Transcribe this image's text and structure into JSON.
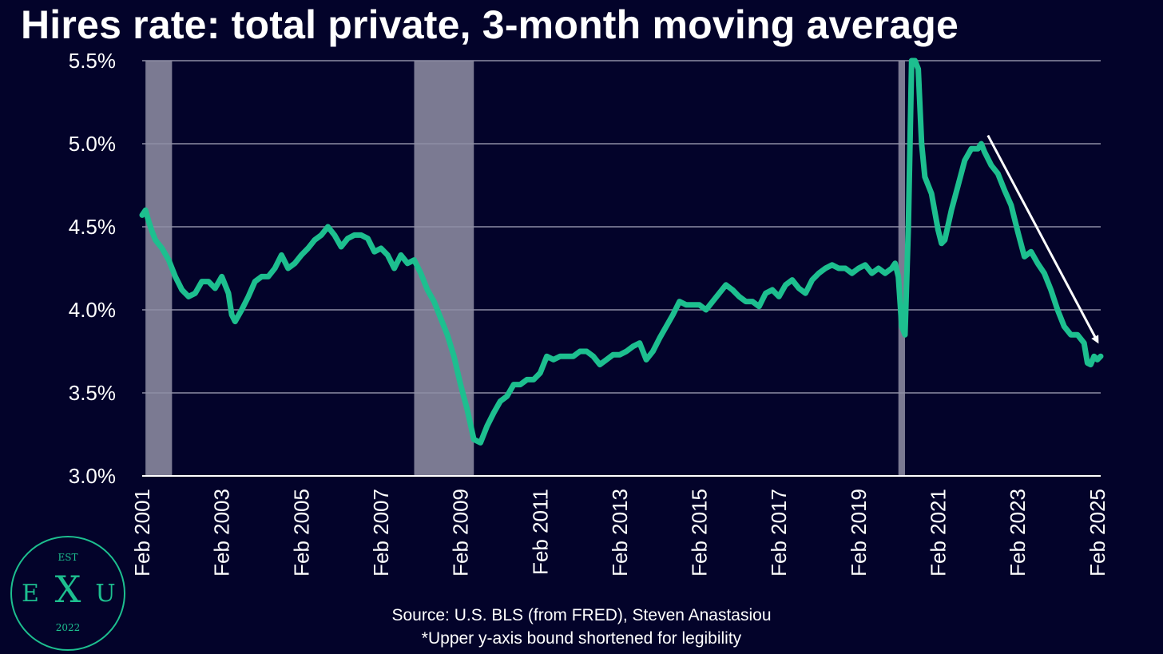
{
  "chart_data": {
    "type": "line",
    "title": "Hires rate: total private, 3-month moving average",
    "source": "Source: U.S. BLS (from FRED), Steven Anastasiou",
    "footnote": "*Upper y-axis bound shortened for legibility",
    "ylim": [
      3.0,
      5.5
    ],
    "y_ticks": [
      {
        "value": 3.0,
        "label": "3.0%"
      },
      {
        "value": 3.5,
        "label": "3.5%"
      },
      {
        "value": 4.0,
        "label": "4.0%"
      },
      {
        "value": 4.5,
        "label": "4.5%"
      },
      {
        "value": 5.0,
        "label": "5.0%"
      },
      {
        "value": 5.5,
        "label": "5.5%"
      }
    ],
    "x_range": [
      "2001-02",
      "2025-03"
    ],
    "x_ticks": [
      {
        "date": "2001-02",
        "label": "Feb 2001"
      },
      {
        "date": "2003-02",
        "label": "Feb 2003"
      },
      {
        "date": "2005-02",
        "label": "Feb 2005"
      },
      {
        "date": "2007-02",
        "label": "Feb 2007"
      },
      {
        "date": "2009-02",
        "label": "Feb 2009"
      },
      {
        "date": "2011-02",
        "label": "Feb 2011"
      },
      {
        "date": "2013-02",
        "label": "Feb 2013"
      },
      {
        "date": "2015-02",
        "label": "Feb 2015"
      },
      {
        "date": "2017-02",
        "label": "Feb 2017"
      },
      {
        "date": "2019-02",
        "label": "Feb 2019"
      },
      {
        "date": "2021-02",
        "label": "Feb 2021"
      },
      {
        "date": "2023-02",
        "label": "Feb 2023"
      },
      {
        "date": "2025-02",
        "label": "Feb 2025"
      }
    ],
    "grid": true,
    "recessions": [
      {
        "start": "2001-03",
        "end": "2001-11"
      },
      {
        "start": "2007-12",
        "end": "2009-06"
      },
      {
        "start": "2020-02",
        "end": "2020-04"
      }
    ],
    "series": [
      {
        "color": "#1dbf8f",
        "points": [
          [
            "2001-02",
            4.57
          ],
          [
            "2001-03",
            4.6
          ],
          [
            "2001-04",
            4.53
          ],
          [
            "2001-05",
            4.47
          ],
          [
            "2001-06",
            4.42
          ],
          [
            "2001-08",
            4.37
          ],
          [
            "2001-10",
            4.3
          ],
          [
            "2001-12",
            4.2
          ],
          [
            "2002-02",
            4.12
          ],
          [
            "2002-04",
            4.08
          ],
          [
            "2002-06",
            4.1
          ],
          [
            "2002-08",
            4.17
          ],
          [
            "2002-10",
            4.17
          ],
          [
            "2002-12",
            4.13
          ],
          [
            "2003-02",
            4.2
          ],
          [
            "2003-04",
            4.1
          ],
          [
            "2003-05",
            3.97
          ],
          [
            "2003-06",
            3.93
          ],
          [
            "2003-08",
            4.0
          ],
          [
            "2003-10",
            4.08
          ],
          [
            "2003-12",
            4.17
          ],
          [
            "2004-02",
            4.2
          ],
          [
            "2004-04",
            4.2
          ],
          [
            "2004-06",
            4.25
          ],
          [
            "2004-08",
            4.33
          ],
          [
            "2004-10",
            4.25
          ],
          [
            "2004-12",
            4.28
          ],
          [
            "2005-02",
            4.33
          ],
          [
            "2005-04",
            4.37
          ],
          [
            "2005-06",
            4.42
          ],
          [
            "2005-08",
            4.45
          ],
          [
            "2005-10",
            4.5
          ],
          [
            "2005-12",
            4.45
          ],
          [
            "2006-02",
            4.38
          ],
          [
            "2006-04",
            4.43
          ],
          [
            "2006-06",
            4.45
          ],
          [
            "2006-08",
            4.45
          ],
          [
            "2006-10",
            4.43
          ],
          [
            "2006-12",
            4.35
          ],
          [
            "2007-02",
            4.37
          ],
          [
            "2007-04",
            4.33
          ],
          [
            "2007-06",
            4.25
          ],
          [
            "2007-08",
            4.33
          ],
          [
            "2007-10",
            4.28
          ],
          [
            "2007-12",
            4.3
          ],
          [
            "2008-02",
            4.22
          ],
          [
            "2008-04",
            4.12
          ],
          [
            "2008-06",
            4.05
          ],
          [
            "2008-08",
            3.95
          ],
          [
            "2008-10",
            3.85
          ],
          [
            "2008-12",
            3.72
          ],
          [
            "2009-02",
            3.55
          ],
          [
            "2009-04",
            3.4
          ],
          [
            "2009-06",
            3.22
          ],
          [
            "2009-08",
            3.2
          ],
          [
            "2009-10",
            3.3
          ],
          [
            "2009-12",
            3.38
          ],
          [
            "2010-02",
            3.45
          ],
          [
            "2010-04",
            3.48
          ],
          [
            "2010-06",
            3.55
          ],
          [
            "2010-08",
            3.55
          ],
          [
            "2010-10",
            3.58
          ],
          [
            "2010-12",
            3.58
          ],
          [
            "2011-02",
            3.62
          ],
          [
            "2011-04",
            3.72
          ],
          [
            "2011-06",
            3.7
          ],
          [
            "2011-08",
            3.72
          ],
          [
            "2011-10",
            3.72
          ],
          [
            "2011-12",
            3.72
          ],
          [
            "2012-02",
            3.75
          ],
          [
            "2012-04",
            3.75
          ],
          [
            "2012-06",
            3.72
          ],
          [
            "2012-08",
            3.67
          ],
          [
            "2012-10",
            3.7
          ],
          [
            "2012-12",
            3.73
          ],
          [
            "2013-02",
            3.73
          ],
          [
            "2013-04",
            3.75
          ],
          [
            "2013-06",
            3.78
          ],
          [
            "2013-08",
            3.8
          ],
          [
            "2013-10",
            3.7
          ],
          [
            "2013-12",
            3.75
          ],
          [
            "2014-02",
            3.83
          ],
          [
            "2014-04",
            3.9
          ],
          [
            "2014-06",
            3.97
          ],
          [
            "2014-08",
            4.05
          ],
          [
            "2014-10",
            4.03
          ],
          [
            "2014-12",
            4.03
          ],
          [
            "2015-02",
            4.03
          ],
          [
            "2015-04",
            4.0
          ],
          [
            "2015-06",
            4.05
          ],
          [
            "2015-08",
            4.1
          ],
          [
            "2015-10",
            4.15
          ],
          [
            "2015-12",
            4.12
          ],
          [
            "2016-02",
            4.08
          ],
          [
            "2016-04",
            4.05
          ],
          [
            "2016-06",
            4.05
          ],
          [
            "2016-08",
            4.02
          ],
          [
            "2016-10",
            4.1
          ],
          [
            "2016-12",
            4.12
          ],
          [
            "2017-02",
            4.08
          ],
          [
            "2017-04",
            4.15
          ],
          [
            "2017-06",
            4.18
          ],
          [
            "2017-08",
            4.13
          ],
          [
            "2017-10",
            4.1
          ],
          [
            "2017-12",
            4.18
          ],
          [
            "2018-02",
            4.22
          ],
          [
            "2018-04",
            4.25
          ],
          [
            "2018-06",
            4.27
          ],
          [
            "2018-08",
            4.25
          ],
          [
            "2018-10",
            4.25
          ],
          [
            "2018-12",
            4.22
          ],
          [
            "2019-02",
            4.25
          ],
          [
            "2019-04",
            4.27
          ],
          [
            "2019-06",
            4.22
          ],
          [
            "2019-08",
            4.25
          ],
          [
            "2019-10",
            4.22
          ],
          [
            "2019-12",
            4.25
          ],
          [
            "2020-01",
            4.28
          ],
          [
            "2020-02",
            4.2
          ],
          [
            "2020-03",
            3.9
          ],
          [
            "2020-04",
            3.85
          ],
          [
            "2020-05",
            4.5
          ],
          [
            "2020-06",
            5.5
          ],
          [
            "2020-07",
            5.5
          ],
          [
            "2020-08",
            5.45
          ],
          [
            "2020-09",
            5.0
          ],
          [
            "2020-10",
            4.8
          ],
          [
            "2020-12",
            4.7
          ],
          [
            "2021-02",
            4.48
          ],
          [
            "2021-03",
            4.4
          ],
          [
            "2021-04",
            4.42
          ],
          [
            "2021-06",
            4.6
          ],
          [
            "2021-08",
            4.75
          ],
          [
            "2021-10",
            4.9
          ],
          [
            "2021-12",
            4.97
          ],
          [
            "2022-02",
            4.97
          ],
          [
            "2022-03",
            5.0
          ],
          [
            "2022-04",
            4.95
          ],
          [
            "2022-06",
            4.87
          ],
          [
            "2022-08",
            4.82
          ],
          [
            "2022-10",
            4.72
          ],
          [
            "2022-12",
            4.63
          ],
          [
            "2023-02",
            4.47
          ],
          [
            "2023-04",
            4.32
          ],
          [
            "2023-06",
            4.35
          ],
          [
            "2023-08",
            4.28
          ],
          [
            "2023-10",
            4.22
          ],
          [
            "2023-12",
            4.12
          ],
          [
            "2024-02",
            4.0
          ],
          [
            "2024-04",
            3.9
          ],
          [
            "2024-06",
            3.85
          ],
          [
            "2024-08",
            3.85
          ],
          [
            "2024-10",
            3.8
          ],
          [
            "2024-11",
            3.68
          ],
          [
            "2024-12",
            3.67
          ],
          [
            "2025-01",
            3.72
          ],
          [
            "2025-02",
            3.7
          ],
          [
            "2025-03",
            3.72
          ]
        ]
      }
    ],
    "trend_arrow": {
      "from": [
        "2022-05",
        5.05
      ],
      "to": [
        "2025-03",
        3.78
      ],
      "color": "#ffffff"
    }
  },
  "logo": {
    "top_text": "EST",
    "left_letter": "E",
    "center_letter": "X",
    "right_letter": "U",
    "bottom_text": "2022",
    "color": "#1dbf8f"
  }
}
